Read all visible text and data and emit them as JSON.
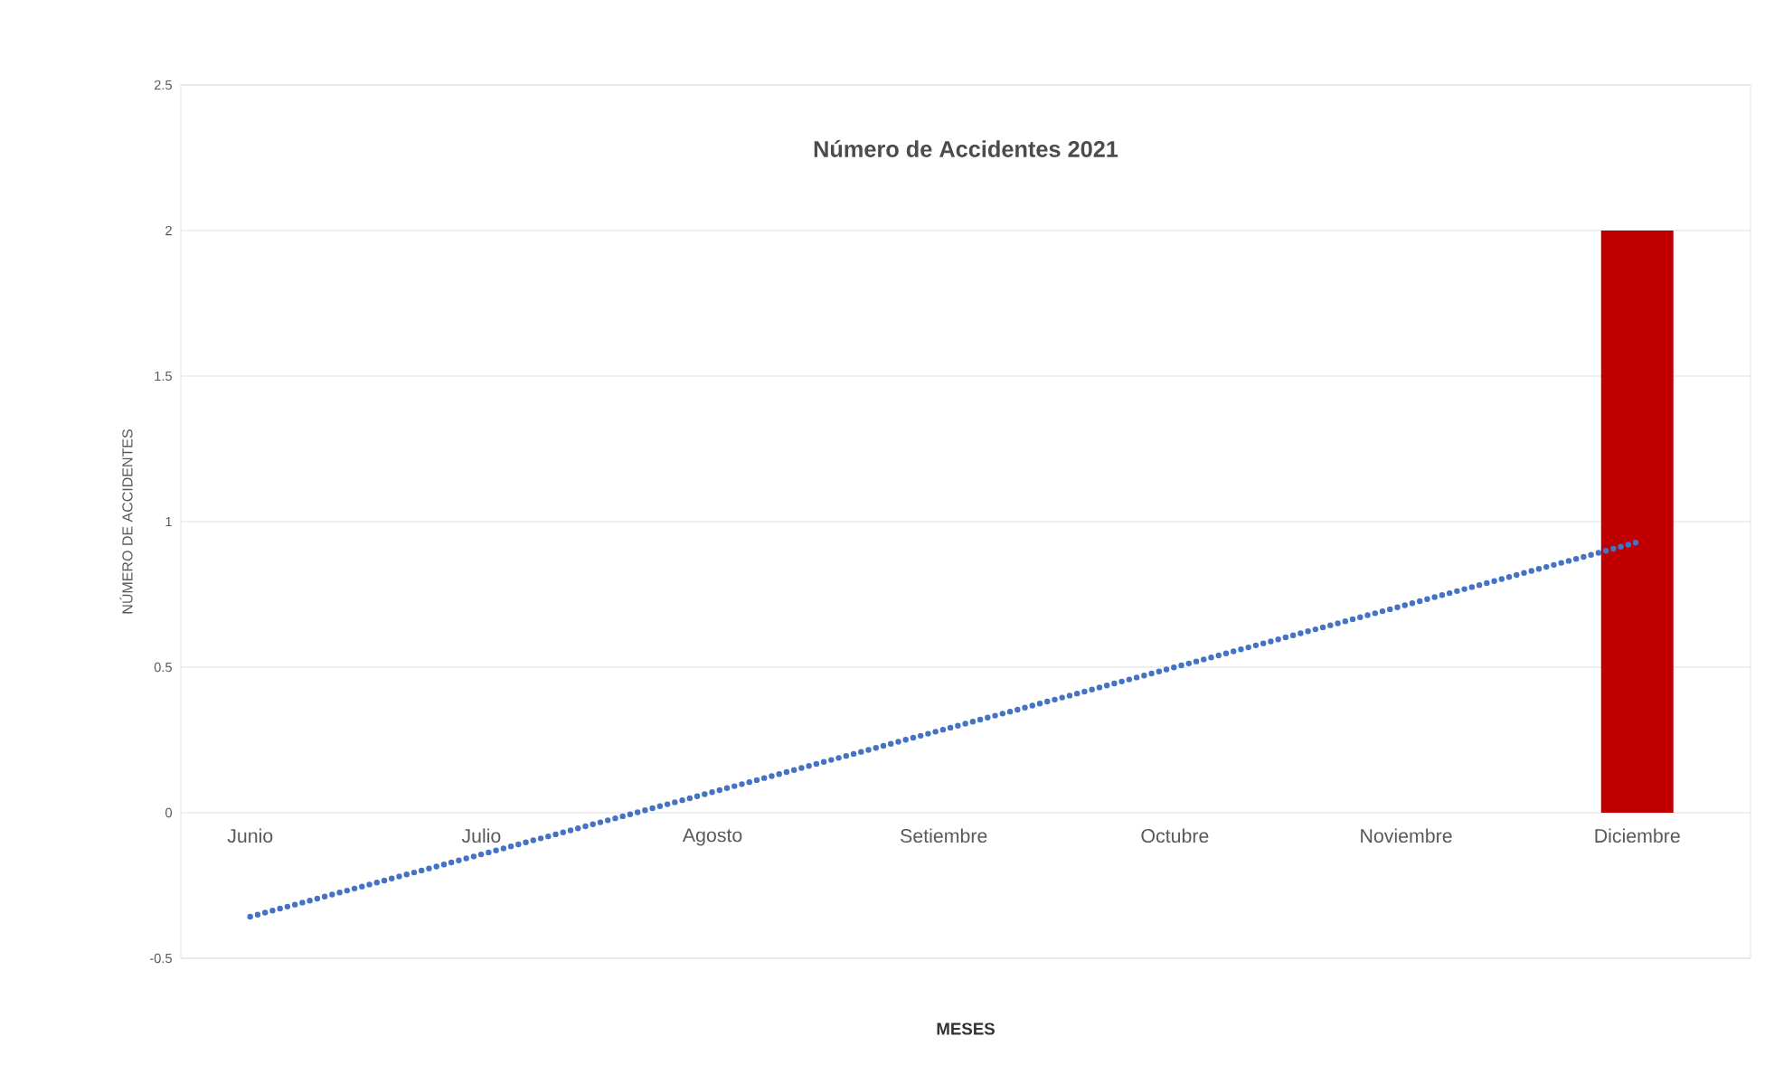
{
  "chart_data": {
    "type": "bar",
    "title": "Número de Accidentes 2021",
    "xlabel": "MESES",
    "ylabel": "NÚMERO DE ACCIDENTES",
    "categories": [
      "Junio",
      "Julio",
      "Agosto",
      "Setiembre",
      "Octubre",
      "Noviembre",
      "Diciembre"
    ],
    "series": [
      {
        "color": "#c00000",
        "values": [
          0,
          0,
          0,
          0,
          0,
          0,
          2
        ]
      },
      {
        "type": "line",
        "color": "#4472c4",
        "line_style": "dotted",
        "values": [
          -0.357,
          -0.143,
          0.071,
          0.286,
          0.5,
          0.714,
          0.929
        ]
      }
    ],
    "ylim": [
      -0.5,
      2.5
    ],
    "yticks": [
      -0.5,
      0,
      0.5,
      1,
      1.5,
      2,
      2.5
    ],
    "grid": "y"
  }
}
